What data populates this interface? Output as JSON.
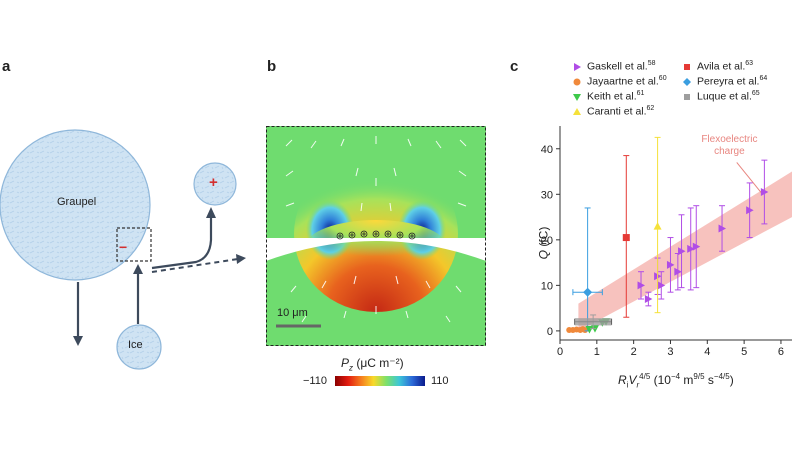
{
  "panels": {
    "a": {
      "label": "a",
      "graupel_label": "Graupel",
      "ice_label": "Ice",
      "minus_sign": "−",
      "plus_sign": "+"
    },
    "b": {
      "label": "b",
      "scale_bar": "10 μm",
      "colorbar_label_main": "P",
      "colorbar_label_sub": "z",
      "colorbar_label_unit": "(μC m⁻²)",
      "colorbar_min": "−110",
      "colorbar_max": "110",
      "colors": {
        "field_green": "#6fdc6f",
        "hot_core": "#d63b1a",
        "warm": "#f2b61c",
        "cool_blue": "#2f7fd8",
        "deep_blue": "#0a1a8c"
      }
    },
    "c": {
      "label": "c",
      "annotation": [
        "Flexoelectric",
        "charge"
      ],
      "legend_entries": [
        {
          "text": "Gaskell et al.",
          "sup": "58",
          "color": "#b04de6",
          "marker": "triangle-right"
        },
        {
          "text": "Avila et al.",
          "sup": "63",
          "color": "#e53935",
          "marker": "square"
        },
        {
          "text": "Jayaartne et al.",
          "sup": "60",
          "color": "#f0893b",
          "marker": "circle"
        },
        {
          "text": "Pereyra et al.",
          "sup": "64",
          "color": "#3a9ee0",
          "marker": "diamond"
        },
        {
          "text": "Keith et al.",
          "sup": "61",
          "color": "#3ec94a",
          "marker": "triangle-down"
        },
        {
          "text": "Luque et al.",
          "sup": "65",
          "color": "#9e9e9e",
          "marker": "square"
        },
        {
          "text": "Caranti et al.",
          "sup": "62",
          "color": "#f5e13a",
          "marker": "triangle-up"
        }
      ]
    }
  },
  "chart_data": {
    "type": "scatter",
    "xlabel": "R_i V_r^{4/5} (10^-4 m^{9/5} s^-4/5)",
    "ylabel": "Q (fC)",
    "xlim": [
      0,
      6.3
    ],
    "ylim": [
      -2,
      45
    ],
    "xticks": [
      0,
      1,
      2,
      3,
      4,
      5,
      6
    ],
    "yticks": [
      0,
      10,
      20,
      30,
      40
    ],
    "band": {
      "x": [
        0.5,
        6.3
      ],
      "lower": [
        0,
        25
      ],
      "upper": [
        6,
        35
      ],
      "color": "#f6b7b3"
    },
    "series": [
      {
        "name": "Gaskell et al.",
        "points": [
          {
            "x": 2.2,
            "y": 10,
            "err": 3
          },
          {
            "x": 2.4,
            "y": 7,
            "err": 1.5
          },
          {
            "x": 2.65,
            "y": 12,
            "err": 4
          },
          {
            "x": 2.75,
            "y": 10,
            "err": 3
          },
          {
            "x": 3.0,
            "y": 14.5,
            "err": 6
          },
          {
            "x": 3.2,
            "y": 13,
            "err": 4
          },
          {
            "x": 3.3,
            "y": 17.5,
            "err": 8
          },
          {
            "x": 3.55,
            "y": 18,
            "err": 9
          },
          {
            "x": 3.7,
            "y": 18.5,
            "err": 9
          },
          {
            "x": 4.4,
            "y": 22.5,
            "err": 5
          },
          {
            "x": 5.15,
            "y": 26.5,
            "err": 6
          },
          {
            "x": 5.55,
            "y": 30.5,
            "err": 7
          }
        ]
      },
      {
        "name": "Avila et al.",
        "points": [
          {
            "x": 1.8,
            "y": 20.5,
            "err_lo": 17.5,
            "err_hi": 18
          }
        ]
      },
      {
        "name": "Jayaartne et al.",
        "points": [
          {
            "x": 0.25,
            "y": 0.2
          },
          {
            "x": 0.35,
            "y": 0.2
          },
          {
            "x": 0.45,
            "y": 0.3
          },
          {
            "x": 0.55,
            "y": 0.2
          },
          {
            "x": 0.62,
            "y": 0.4
          },
          {
            "x": 0.68,
            "y": 0.2
          }
        ]
      },
      {
        "name": "Pereyra et al.",
        "points": [
          {
            "x": 0.75,
            "y": 8.5,
            "err_lo": 8.5,
            "err_hi": 18.5,
            "xerr": 0.4
          }
        ]
      },
      {
        "name": "Keith et al.",
        "points": [
          {
            "x": 0.8,
            "y": 0.3
          },
          {
            "x": 0.95,
            "y": 0.5
          },
          {
            "x": 1.15,
            "y": 1.8
          },
          {
            "x": 1.25,
            "y": 2.0
          }
        ]
      },
      {
        "name": "Luque et al.",
        "points": [
          {
            "x": 0.9,
            "y": 2.0,
            "err": 1.5,
            "xerr": 0.5
          }
        ]
      },
      {
        "name": "Caranti et al.",
        "points": [
          {
            "x": 2.65,
            "y": 23,
            "err_lo": 19,
            "err_hi": 19.5
          }
        ]
      }
    ]
  }
}
